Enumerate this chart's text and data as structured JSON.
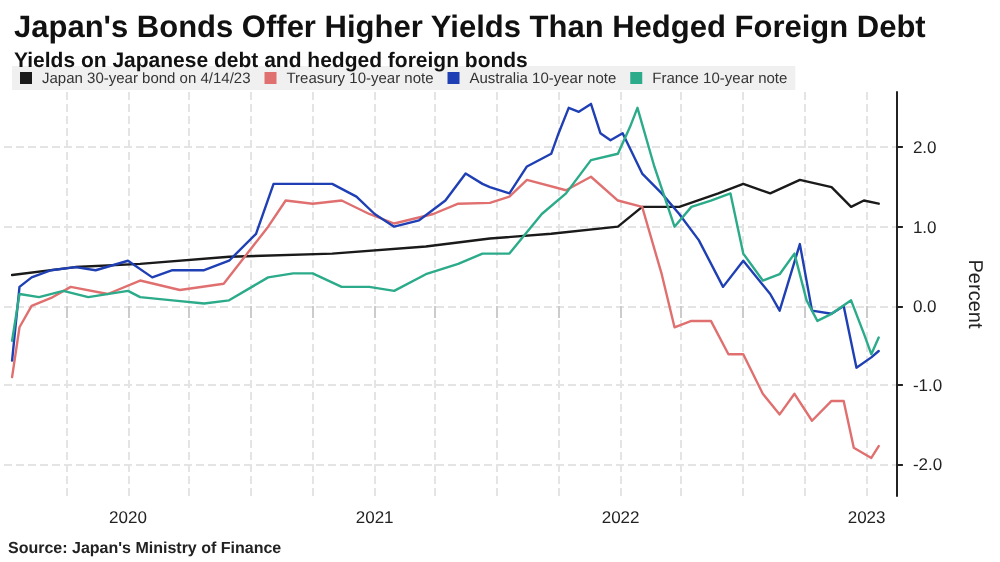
{
  "chart_data": {
    "type": "line",
    "title": "Japan's Bonds Offer Higher Yields Than Hedged Foreign Debt",
    "subtitle": "Yields on Japanese debt and hedged foreign bonds",
    "ylabel": "Percent",
    "annotations": [
      "Source: Japan's Ministry of Finance"
    ],
    "xlim": [
      "2019-07-01",
      "2023-02-15"
    ],
    "xticks": [
      {
        "value": "2019-10",
        "label": null
      },
      "2020",
      {
        "value": "2020-04",
        "label": null
      },
      {
        "value": "2020-07",
        "label": null
      },
      {
        "value": "2020-10",
        "label": null
      },
      "2021",
      {
        "value": "2021-04",
        "label": null
      },
      {
        "value": "2021-07",
        "label": null
      },
      {
        "value": "2021-10",
        "label": null
      },
      "2022",
      {
        "value": "2022-04",
        "label": null
      },
      {
        "value": "2022-07",
        "label": null
      },
      {
        "value": "2022-10",
        "label": null
      },
      "2023"
    ],
    "ylim": [
      -2.4,
      2.7
    ],
    "yticks": [
      {
        "value": -2,
        "label": "-2.0"
      },
      {
        "value": -1,
        "label": "-1.0"
      },
      {
        "value": 0,
        "label": "0.0"
      },
      {
        "value": 1,
        "label": "1.0"
      },
      {
        "value": 2,
        "label": "2.0"
      }
    ],
    "grid": true,
    "legend": "top left",
    "marker": "none",
    "line_style": "solid",
    "series": [
      {
        "name": "Japan 30-year bond on 4/14/23",
        "color": "#1a1a1a",
        "x": [
          "2019-07-13",
          "2019-10-15",
          "2020-01-19",
          "2020-05-30",
          "2020-10-30",
          "2021-03-18",
          "2021-06-21",
          "2021-09-20",
          "2021-12-28",
          "2022-02-02",
          "2022-03-29",
          "2022-05-26",
          "2022-07-02",
          "2022-08-11",
          "2022-09-24",
          "2022-11-10",
          "2022-12-09",
          "2022-12-28",
          "2023-01-19"
        ],
        "values": [
          0.39,
          0.49,
          0.53,
          0.62,
          0.66,
          0.75,
          0.85,
          0.91,
          1.0,
          1.25,
          1.25,
          1.42,
          1.54,
          1.42,
          1.59,
          1.5,
          1.25,
          1.33,
          1.29
        ]
      },
      {
        "name": "Treasury 10-year note",
        "color": "#e07070",
        "x": [
          "2019-07-13",
          "2019-07-24",
          "2019-08-11",
          "2019-09-09",
          "2019-10-08",
          "2019-12-02",
          "2020-01-19",
          "2020-03-18",
          "2020-05-22",
          "2020-07-27",
          "2020-08-22",
          "2020-10-01",
          "2020-11-13",
          "2020-12-24",
          "2021-01-30",
          "2021-03-29",
          "2021-05-05",
          "2021-06-21",
          "2021-07-20",
          "2021-08-15",
          "2021-10-12",
          "2021-11-18",
          "2021-12-28",
          "2022-02-02",
          "2022-03-03",
          "2022-03-22",
          "2022-04-16",
          "2022-05-15",
          "2022-06-10",
          "2022-07-02",
          "2022-07-31",
          "2022-08-25",
          "2022-09-16",
          "2022-10-12",
          "2022-11-10",
          "2022-11-28",
          "2022-12-13",
          "2023-01-08",
          "2023-01-19"
        ],
        "values": [
          -0.9,
          -0.27,
          0,
          0.1,
          0.24,
          0.15,
          0.32,
          0.2,
          0.28,
          1.0,
          1.33,
          1.29,
          1.33,
          1.16,
          1.04,
          1.16,
          1.29,
          1.3,
          1.38,
          1.59,
          1.46,
          1.63,
          1.33,
          1.25,
          0.4,
          -0.27,
          -0.19,
          -0.19,
          -0.61,
          -0.61,
          -1.11,
          -1.37,
          -1.11,
          -1.45,
          -1.2,
          -1.2,
          -1.79,
          -1.92,
          -1.77
        ]
      },
      {
        "name": "Australia 10-year note",
        "color": "#1f3fb4",
        "x": [
          "2019-07-13",
          "2019-07-24",
          "2019-08-11",
          "2019-09-09",
          "2019-10-15",
          "2019-11-14",
          "2020-01-01",
          "2020-02-06",
          "2020-03-07",
          "2020-04-23",
          "2020-05-30",
          "2020-07-09",
          "2020-08-04",
          "2020-09-09",
          "2020-10-30",
          "2020-12-05",
          "2021-01-01",
          "2021-01-30",
          "2021-03-08",
          "2021-04-16",
          "2021-05-16",
          "2021-06-10",
          "2021-06-21",
          "2021-07-20",
          "2021-08-15",
          "2021-09-20",
          "2021-10-01",
          "2021-10-16",
          "2021-10-31",
          "2021-11-18",
          "2021-12-02",
          "2021-12-17",
          "2022-01-04",
          "2022-02-02",
          "2022-03-03",
          "2022-03-29",
          "2022-04-27",
          "2022-06-02",
          "2022-07-02",
          "2022-08-11",
          "2022-08-25",
          "2022-09-24",
          "2022-10-12",
          "2022-11-10",
          "2022-11-28",
          "2022-12-17",
          "2023-01-08",
          "2023-01-19"
        ],
        "values": [
          -0.69,
          0.24,
          0.36,
          0.45,
          0.49,
          0.45,
          0.57,
          0.36,
          0.45,
          0.45,
          0.57,
          0.91,
          1.54,
          1.54,
          1.54,
          1.38,
          1.16,
          1.0,
          1.08,
          1.33,
          1.67,
          1.54,
          1.5,
          1.42,
          1.76,
          1.92,
          2.18,
          2.5,
          2.45,
          2.55,
          2.18,
          2.09,
          2.18,
          1.67,
          1.42,
          1.16,
          0.83,
          0.24,
          0.57,
          0.15,
          -0.06,
          0.78,
          -0.06,
          -0.1,
          0,
          -0.78,
          -0.65,
          -0.57
        ]
      },
      {
        "name": "France 10-year note",
        "color": "#2bab8a",
        "x": [
          "2019-07-13",
          "2019-07-24",
          "2019-08-22",
          "2019-09-27",
          "2019-11-03",
          "2020-01-01",
          "2020-01-19",
          "2020-03-07",
          "2020-04-23",
          "2020-05-30",
          "2020-07-27",
          "2020-09-02",
          "2020-10-01",
          "2020-11-13",
          "2020-12-24",
          "2021-01-30",
          "2021-03-18",
          "2021-05-05",
          "2021-06-10",
          "2021-07-20",
          "2021-09-06",
          "2021-10-12",
          "2021-11-18",
          "2021-12-28",
          "2022-01-15",
          "2022-01-26",
          "2022-02-20",
          "2022-03-22",
          "2022-04-16",
          "2022-05-15",
          "2022-06-13",
          "2022-07-02",
          "2022-07-31",
          "2022-08-25",
          "2022-09-16",
          "2022-10-04",
          "2022-10-20",
          "2022-11-10",
          "2022-12-09",
          "2022-12-28",
          "2023-01-08",
          "2023-01-19"
        ],
        "values": [
          -0.44,
          0.15,
          0.11,
          0.19,
          0.11,
          0.19,
          0.11,
          0.07,
          0.03,
          0.07,
          0.36,
          0.41,
          0.41,
          0.24,
          0.24,
          0.19,
          0.4,
          0.53,
          0.66,
          0.66,
          1.16,
          1.42,
          1.84,
          1.92,
          2.26,
          2.5,
          1.76,
          1.0,
          1.25,
          1.33,
          1.42,
          0.66,
          0.32,
          0.4,
          0.66,
          0.07,
          -0.19,
          -0.1,
          0.07,
          -0.35,
          -0.61,
          -0.4
        ]
      }
    ]
  }
}
